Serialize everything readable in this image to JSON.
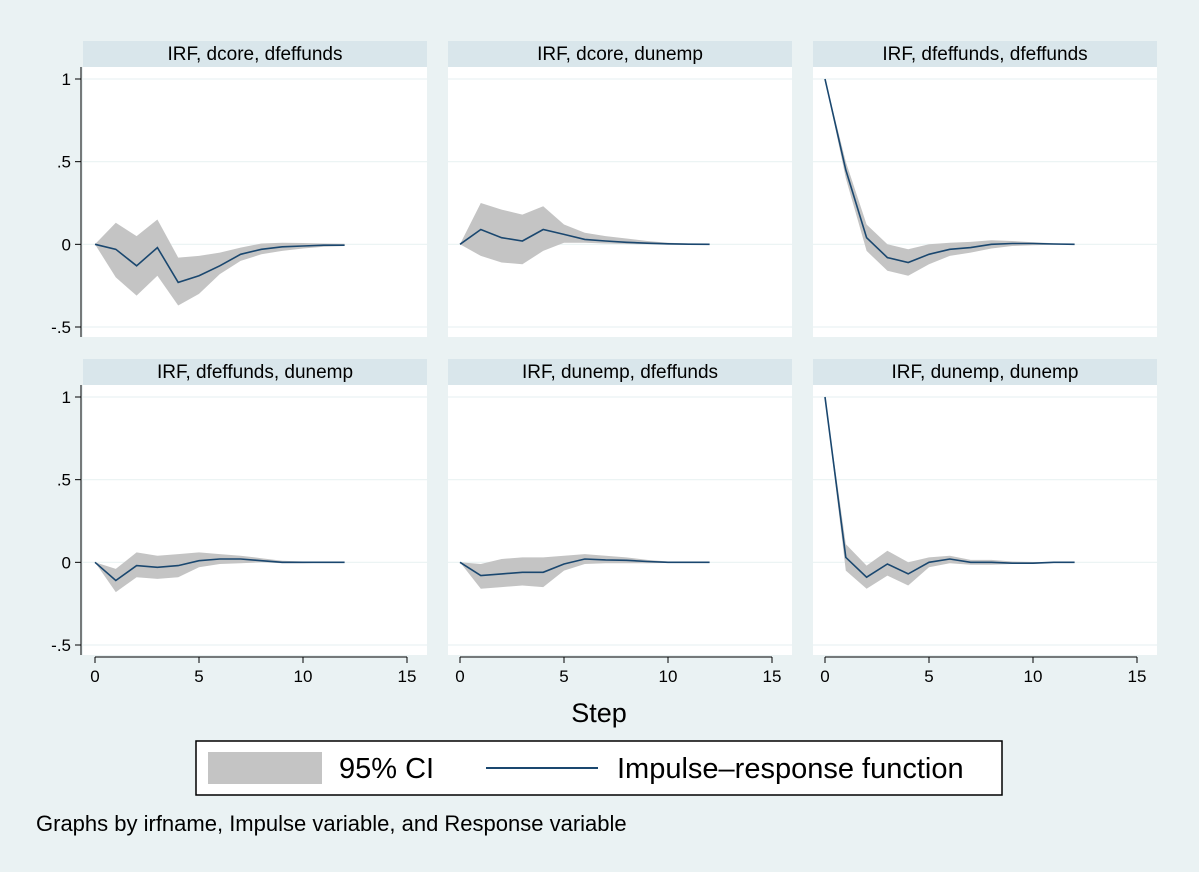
{
  "figure": {
    "x_title": "Step",
    "note": "Graphs by irfname, Impulse variable, and Response variable",
    "legend": {
      "ci_label": "95% CI",
      "line_label": "Impulse–response function"
    },
    "colors": {
      "background": "#eaf2f3",
      "panel": "#ffffff",
      "strip": "#d9e6eb",
      "band": "#c4c4c4",
      "line": "#1a476f",
      "grid": "#eaf2f3",
      "axis": "#000000"
    }
  },
  "chart_data": [
    {
      "type": "area",
      "title": "IRF, dcore, dfeffunds",
      "xlim": [
        0,
        15
      ],
      "ylim": [
        -0.5,
        1
      ],
      "xticks": [
        0,
        5,
        10,
        15
      ],
      "xtick_labels": [
        "0",
        "5",
        "10",
        "15"
      ],
      "yticks": [
        -0.5,
        0,
        0.5,
        1
      ],
      "ytick_labels": [
        "-.5",
        "0",
        ".5",
        "1"
      ],
      "grid": true,
      "x": [
        0,
        1,
        2,
        3,
        4,
        5,
        6,
        7,
        8,
        9,
        10,
        11,
        12
      ],
      "series": [
        {
          "name": "Impulse–response function",
          "values": [
            0,
            -0.03,
            -0.13,
            -0.02,
            -0.23,
            -0.19,
            -0.13,
            -0.06,
            -0.03,
            -0.015,
            -0.01,
            -0.005,
            -0.005
          ]
        },
        {
          "name": "95% CI lower",
          "values": [
            0,
            -0.2,
            -0.31,
            -0.19,
            -0.37,
            -0.3,
            -0.18,
            -0.1,
            -0.06,
            -0.04,
            -0.025,
            -0.015,
            -0.01
          ]
        },
        {
          "name": "95% CI upper",
          "values": [
            0,
            0.13,
            0.05,
            0.15,
            -0.08,
            -0.07,
            -0.05,
            -0.02,
            0.005,
            0.01,
            0.008,
            0.005,
            0.003
          ]
        }
      ]
    },
    {
      "type": "area",
      "title": "IRF, dcore, dunemp",
      "xlim": [
        0,
        15
      ],
      "ylim": [
        -0.5,
        1
      ],
      "xticks": [
        0,
        5,
        10,
        15
      ],
      "xtick_labels": [
        "0",
        "5",
        "10",
        "15"
      ],
      "yticks": [
        -0.5,
        0,
        0.5,
        1
      ],
      "ytick_labels": [
        "-.5",
        "0",
        ".5",
        "1"
      ],
      "grid": true,
      "x": [
        0,
        1,
        2,
        3,
        4,
        5,
        6,
        7,
        8,
        9,
        10,
        11,
        12
      ],
      "series": [
        {
          "name": "Impulse–response function",
          "values": [
            0,
            0.09,
            0.04,
            0.02,
            0.09,
            0.06,
            0.03,
            0.02,
            0.012,
            0.007,
            0.003,
            0.001,
            0
          ]
        },
        {
          "name": "95% CI lower",
          "values": [
            0,
            -0.07,
            -0.11,
            -0.12,
            -0.04,
            0.01,
            0.01,
            0.005,
            0.002,
            0,
            -0.002,
            -0.002,
            -0.001
          ]
        },
        {
          "name": "95% CI upper",
          "values": [
            0,
            0.25,
            0.21,
            0.18,
            0.23,
            0.12,
            0.07,
            0.05,
            0.035,
            0.02,
            0.01,
            0.005,
            0.002
          ]
        }
      ]
    },
    {
      "type": "area",
      "title": "IRF, dfeffunds, dfeffunds",
      "xlim": [
        0,
        15
      ],
      "ylim": [
        -0.5,
        1
      ],
      "xticks": [
        0,
        5,
        10,
        15
      ],
      "xtick_labels": [
        "0",
        "5",
        "10",
        "15"
      ],
      "yticks": [
        -0.5,
        0,
        0.5,
        1
      ],
      "ytick_labels": [
        "-.5",
        "0",
        ".5",
        "1"
      ],
      "grid": true,
      "x": [
        0,
        1,
        2,
        3,
        4,
        5,
        6,
        7,
        8,
        9,
        10,
        11,
        12
      ],
      "series": [
        {
          "name": "Impulse–response function",
          "values": [
            1,
            0.45,
            0.04,
            -0.08,
            -0.11,
            -0.06,
            -0.03,
            -0.02,
            0,
            0.005,
            0.005,
            0.002,
            0
          ]
        },
        {
          "name": "95% CI lower",
          "values": [
            1,
            0.4,
            -0.04,
            -0.16,
            -0.19,
            -0.12,
            -0.07,
            -0.05,
            -0.025,
            -0.01,
            -0.005,
            -0.002,
            -0.001
          ]
        },
        {
          "name": "95% CI upper",
          "values": [
            1,
            0.5,
            0.12,
            0.0,
            -0.03,
            0.0,
            0.01,
            0.015,
            0.025,
            0.02,
            0.012,
            0.006,
            0.002
          ]
        }
      ]
    },
    {
      "type": "area",
      "title": "IRF, dfeffunds, dunemp",
      "xlim": [
        0,
        15
      ],
      "ylim": [
        -0.5,
        1
      ],
      "xticks": [
        0,
        5,
        10,
        15
      ],
      "xtick_labels": [
        "0",
        "5",
        "10",
        "15"
      ],
      "yticks": [
        -0.5,
        0,
        0.5,
        1
      ],
      "ytick_labels": [
        "-.5",
        "0",
        ".5",
        "1"
      ],
      "grid": true,
      "x": [
        0,
        1,
        2,
        3,
        4,
        5,
        6,
        7,
        8,
        9,
        10,
        11,
        12
      ],
      "series": [
        {
          "name": "Impulse–response function",
          "values": [
            0,
            -0.11,
            -0.02,
            -0.03,
            -0.02,
            0.01,
            0.02,
            0.02,
            0.01,
            0,
            0,
            0,
            0
          ]
        },
        {
          "name": "95% CI lower",
          "values": [
            0,
            -0.18,
            -0.09,
            -0.1,
            -0.09,
            -0.03,
            -0.01,
            -0.005,
            0,
            -0.005,
            -0.005,
            -0.002,
            -0.001
          ]
        },
        {
          "name": "95% CI upper",
          "values": [
            0,
            -0.04,
            0.06,
            0.04,
            0.05,
            0.06,
            0.05,
            0.04,
            0.025,
            0.01,
            0.005,
            0.003,
            0.001
          ]
        }
      ]
    },
    {
      "type": "area",
      "title": "IRF, dunemp, dfeffunds",
      "xlim": [
        0,
        15
      ],
      "ylim": [
        -0.5,
        1
      ],
      "xticks": [
        0,
        5,
        10,
        15
      ],
      "xtick_labels": [
        "0",
        "5",
        "10",
        "15"
      ],
      "yticks": [
        -0.5,
        0,
        0.5,
        1
      ],
      "ytick_labels": [
        "-.5",
        "0",
        ".5",
        "1"
      ],
      "grid": true,
      "x": [
        0,
        1,
        2,
        3,
        4,
        5,
        6,
        7,
        8,
        9,
        10,
        11,
        12
      ],
      "series": [
        {
          "name": "Impulse–response function",
          "values": [
            0,
            -0.08,
            -0.07,
            -0.06,
            -0.06,
            -0.01,
            0.02,
            0.015,
            0.012,
            0.005,
            0,
            0,
            0
          ]
        },
        {
          "name": "95% CI lower",
          "values": [
            0,
            -0.16,
            -0.15,
            -0.14,
            -0.15,
            -0.05,
            -0.01,
            -0.005,
            -0.005,
            -0.005,
            -0.004,
            -0.002,
            -0.001
          ]
        },
        {
          "name": "95% CI upper",
          "values": [
            0,
            -0.01,
            0.02,
            0.03,
            0.03,
            0.04,
            0.05,
            0.04,
            0.03,
            0.015,
            0.005,
            0.002,
            0.001
          ]
        }
      ]
    },
    {
      "type": "area",
      "title": "IRF, dunemp, dunemp",
      "xlim": [
        0,
        15
      ],
      "ylim": [
        -0.5,
        1
      ],
      "xticks": [
        0,
        5,
        10,
        15
      ],
      "xtick_labels": [
        "0",
        "5",
        "10",
        "15"
      ],
      "yticks": [
        -0.5,
        0,
        0.5,
        1
      ],
      "ytick_labels": [
        "-.5",
        "0",
        ".5",
        "1"
      ],
      "grid": true,
      "x": [
        0,
        1,
        2,
        3,
        4,
        5,
        6,
        7,
        8,
        9,
        10,
        11,
        12
      ],
      "series": [
        {
          "name": "Impulse–response function",
          "values": [
            1,
            0.03,
            -0.09,
            -0.01,
            -0.07,
            0.0,
            0.02,
            0.0,
            0.0,
            -0.005,
            -0.005,
            0,
            0
          ]
        },
        {
          "name": "95% CI lower",
          "values": [
            1,
            -0.05,
            -0.16,
            -0.08,
            -0.14,
            -0.03,
            -0.005,
            -0.015,
            -0.015,
            -0.01,
            -0.008,
            -0.004,
            -0.002
          ]
        },
        {
          "name": "95% CI upper",
          "values": [
            1,
            0.11,
            -0.02,
            0.07,
            0.0,
            0.03,
            0.04,
            0.015,
            0.015,
            0.005,
            0.002,
            0.002,
            0.001
          ]
        }
      ]
    }
  ]
}
